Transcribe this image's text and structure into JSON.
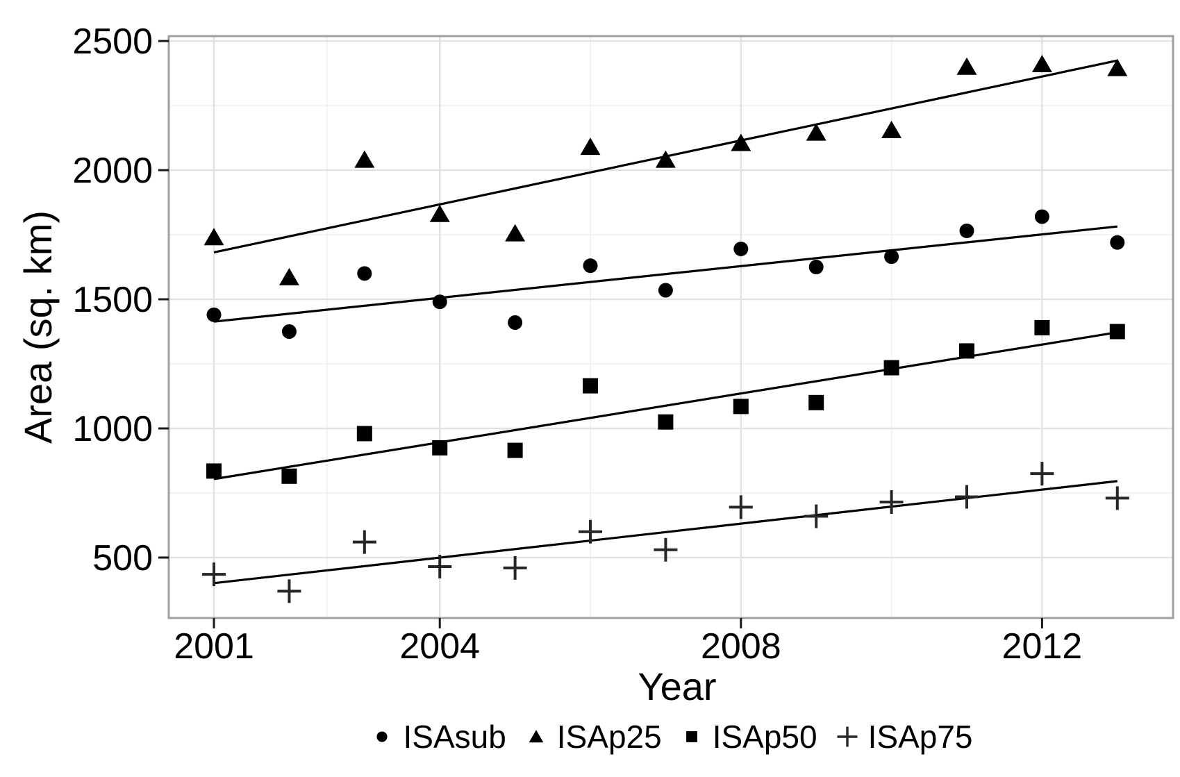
{
  "figure": {
    "kind": "scatter plot with linear trend lines, black on white, ggplot theme_bw style"
  },
  "chart_data": {
    "type": "scatter",
    "title": "",
    "xlabel": "Year",
    "ylabel": "Area (sq. km)",
    "legend_position": "bottom-center",
    "grid": true,
    "x_major_ticks": [
      2001,
      2004,
      2008,
      2012
    ],
    "x_minor_gridlines": [
      2002.5,
      2006,
      2010
    ],
    "y_major_ticks": [
      500,
      1000,
      1500,
      2000,
      2500
    ],
    "y_minor_gridlines": [
      750,
      1250,
      1750,
      2250
    ],
    "xlim": [
      2000.4,
      2013.74
    ],
    "ylim": [
      266,
      2519
    ],
    "x": [
      2001,
      2002,
      2003,
      2004,
      2005,
      2006,
      2007,
      2008,
      2009,
      2010,
      2011,
      2012,
      2013
    ],
    "series": [
      {
        "name": "ISAsub",
        "marker": "circle",
        "values": [
          1440,
          1375,
          1600,
          1490,
          1410,
          1630,
          1535,
          1695,
          1625,
          1665,
          1765,
          1820,
          1720
        ]
      },
      {
        "name": "ISAp25",
        "marker": "triangle",
        "values": [
          1740,
          1585,
          2040,
          1830,
          1755,
          2090,
          2040,
          2105,
          2145,
          2155,
          2400,
          2410,
          2395
        ]
      },
      {
        "name": "ISAp50",
        "marker": "square",
        "values": [
          835,
          815,
          980,
          925,
          915,
          1165,
          1025,
          1085,
          1100,
          1235,
          1300,
          1390,
          1375
        ]
      },
      {
        "name": "ISAp75",
        "marker": "plus",
        "values": [
          435,
          370,
          560,
          465,
          460,
          600,
          530,
          695,
          660,
          715,
          735,
          825,
          730
        ]
      }
    ],
    "trend_lines": "ordinary least squares fit per series, drawn from x=2001 to x=2013",
    "colors": {
      "points": "#000000",
      "trend_line": "#000000",
      "grid_major": "#e2e2e2",
      "grid_minor": "#f1f1f1",
      "panel_border": "#a0a0a0",
      "tick_mark": "#1a1a1a",
      "background": "#ffffff"
    }
  }
}
